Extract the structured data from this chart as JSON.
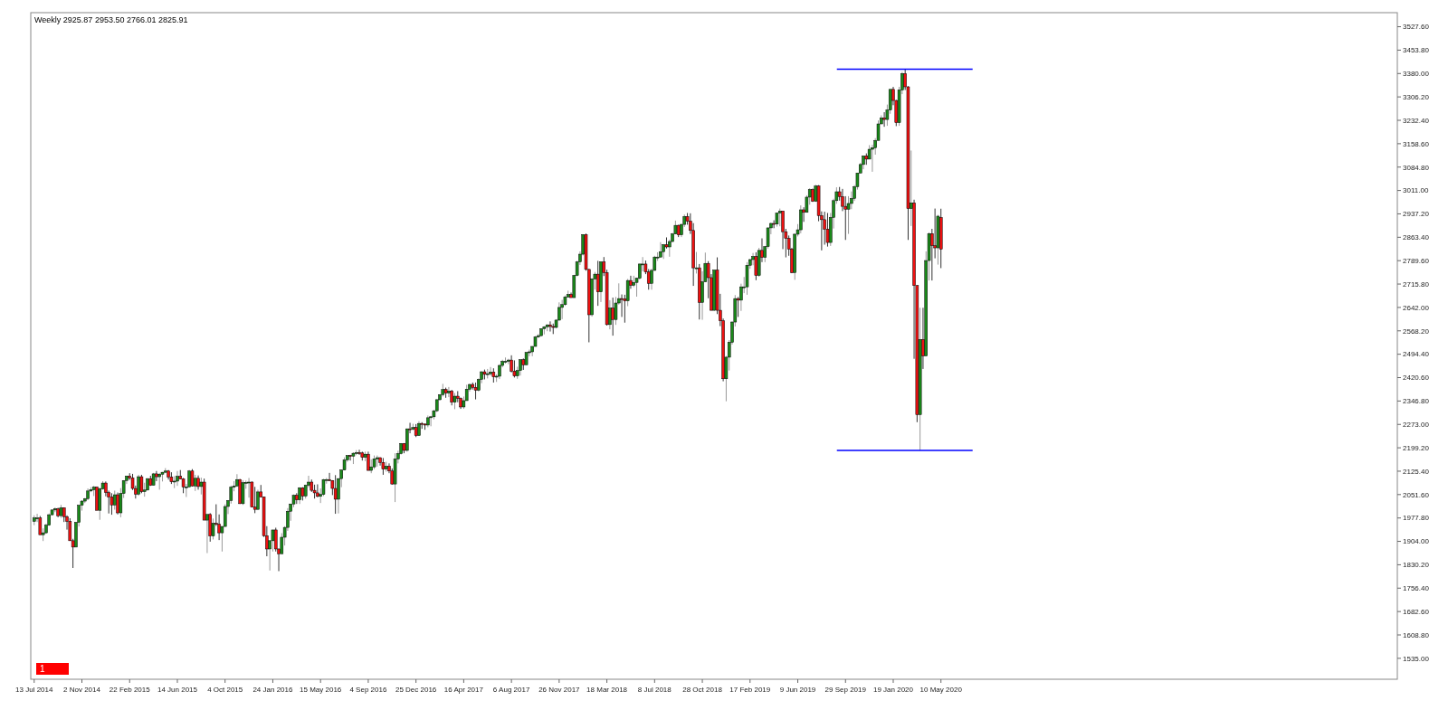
{
  "chart_data": {
    "type": "candlestick",
    "title": "Weekly  2925.87 2953.50 2766.01 2825.91",
    "annotations": [
      "1"
    ],
    "x": [
      "2014-07-13",
      "2014-07-20",
      "2014-07-27",
      "2014-08-03",
      "2014-08-10",
      "2014-08-17",
      "2014-08-24",
      "2014-08-31",
      "2014-09-07",
      "2014-09-14",
      "2014-09-21",
      "2014-09-28",
      "2014-10-05",
      "2014-10-12",
      "2014-10-19",
      "2014-10-26",
      "2014-11-02",
      "2014-11-09",
      "2014-11-16",
      "2014-11-23",
      "2014-11-30",
      "2014-12-07",
      "2014-12-14",
      "2014-12-21",
      "2014-12-28",
      "2015-01-04",
      "2015-01-11",
      "2015-01-18",
      "2015-01-25",
      "2015-02-01",
      "2015-02-08",
      "2015-02-15",
      "2015-02-22",
      "2015-03-01",
      "2015-03-08",
      "2015-03-15",
      "2015-03-22",
      "2015-03-29",
      "2015-04-05",
      "2015-04-12",
      "2015-04-19",
      "2015-04-26",
      "2015-05-03",
      "2015-05-10",
      "2015-05-17",
      "2015-05-24",
      "2015-05-31",
      "2015-06-07",
      "2015-06-14",
      "2015-06-21",
      "2015-06-28",
      "2015-07-05",
      "2015-07-12",
      "2015-07-19",
      "2015-07-26",
      "2015-08-02",
      "2015-08-09",
      "2015-08-16",
      "2015-08-23",
      "2015-08-30",
      "2015-09-06",
      "2015-09-13",
      "2015-09-20",
      "2015-09-27",
      "2015-10-04",
      "2015-10-11",
      "2015-10-18",
      "2015-10-25",
      "2015-11-01",
      "2015-11-08",
      "2015-11-15",
      "2015-11-22",
      "2015-11-29",
      "2015-12-06",
      "2015-12-13",
      "2015-12-20",
      "2015-12-27",
      "2016-01-03",
      "2016-01-10",
      "2016-01-17",
      "2016-01-24",
      "2016-01-31",
      "2016-02-07",
      "2016-02-14",
      "2016-02-21",
      "2016-02-28",
      "2016-03-06",
      "2016-03-13",
      "2016-03-20",
      "2016-03-27",
      "2016-04-03",
      "2016-04-10",
      "2016-04-17",
      "2016-04-24",
      "2016-05-01",
      "2016-05-08",
      "2016-05-15",
      "2016-05-22",
      "2016-05-29",
      "2016-06-05",
      "2016-06-12",
      "2016-06-19",
      "2016-06-26",
      "2016-07-03",
      "2016-07-10",
      "2016-07-17",
      "2016-07-24",
      "2016-07-31",
      "2016-08-07",
      "2016-08-14",
      "2016-08-21",
      "2016-08-28",
      "2016-09-04",
      "2016-09-11",
      "2016-09-18",
      "2016-09-25",
      "2016-10-02",
      "2016-10-09",
      "2016-10-16",
      "2016-10-23",
      "2016-10-30",
      "2016-11-06",
      "2016-11-13",
      "2016-11-20",
      "2016-11-27",
      "2016-12-04",
      "2016-12-11",
      "2016-12-18",
      "2016-12-25",
      "2017-01-01",
      "2017-01-08",
      "2017-01-15",
      "2017-01-22",
      "2017-01-29",
      "2017-02-05",
      "2017-02-12",
      "2017-02-19",
      "2017-02-26",
      "2017-03-05",
      "2017-03-12",
      "2017-03-19",
      "2017-03-26",
      "2017-04-02",
      "2017-04-09",
      "2017-04-16",
      "2017-04-23",
      "2017-04-30",
      "2017-05-07",
      "2017-05-14",
      "2017-05-21",
      "2017-05-28",
      "2017-06-04",
      "2017-06-11",
      "2017-06-18",
      "2017-06-25",
      "2017-07-02",
      "2017-07-09",
      "2017-07-16",
      "2017-07-23",
      "2017-07-30",
      "2017-08-06",
      "2017-08-13",
      "2017-08-20",
      "2017-08-27",
      "2017-09-03",
      "2017-09-10",
      "2017-09-17",
      "2017-09-24",
      "2017-10-01",
      "2017-10-08",
      "2017-10-15",
      "2017-10-22",
      "2017-10-29",
      "2017-11-05",
      "2017-11-12",
      "2017-11-19",
      "2017-11-26",
      "2017-12-03",
      "2017-12-10",
      "2017-12-17",
      "2017-12-24",
      "2017-12-31",
      "2018-01-07",
      "2018-01-14",
      "2018-01-21",
      "2018-01-28",
      "2018-02-04",
      "2018-02-11",
      "2018-02-18",
      "2018-02-25",
      "2018-03-04",
      "2018-03-11",
      "2018-03-18",
      "2018-03-25",
      "2018-04-01",
      "2018-04-08",
      "2018-04-15",
      "2018-04-22",
      "2018-04-29",
      "2018-05-06",
      "2018-05-13",
      "2018-05-20",
      "2018-05-27",
      "2018-06-03",
      "2018-06-10",
      "2018-06-17",
      "2018-06-24",
      "2018-07-01",
      "2018-07-08",
      "2018-07-15",
      "2018-07-22",
      "2018-07-29",
      "2018-08-05",
      "2018-08-12",
      "2018-08-19",
      "2018-08-26",
      "2018-09-02",
      "2018-09-09",
      "2018-09-16",
      "2018-09-23",
      "2018-09-30",
      "2018-10-07",
      "2018-10-14",
      "2018-10-21",
      "2018-10-28",
      "2018-11-04",
      "2018-11-11",
      "2018-11-18",
      "2018-11-25",
      "2018-12-02",
      "2018-12-09",
      "2018-12-16",
      "2018-12-23",
      "2018-12-30",
      "2019-01-06",
      "2019-01-13",
      "2019-01-20",
      "2019-01-27",
      "2019-02-03",
      "2019-02-10",
      "2019-02-17",
      "2019-02-24",
      "2019-03-03",
      "2019-03-10",
      "2019-03-17",
      "2019-03-24",
      "2019-03-31",
      "2019-04-07",
      "2019-04-14",
      "2019-04-21",
      "2019-04-28",
      "2019-05-05",
      "2019-05-12",
      "2019-05-19",
      "2019-05-26",
      "2019-06-02",
      "2019-06-09",
      "2019-06-16",
      "2019-06-23",
      "2019-06-30",
      "2019-07-07",
      "2019-07-14",
      "2019-07-21",
      "2019-07-28",
      "2019-08-04",
      "2019-08-11",
      "2019-08-18",
      "2019-08-25",
      "2019-09-01",
      "2019-09-08",
      "2019-09-15",
      "2019-09-22",
      "2019-09-29",
      "2019-10-06",
      "2019-10-13",
      "2019-10-20",
      "2019-10-27",
      "2019-11-03",
      "2019-11-10",
      "2019-11-17",
      "2019-11-24",
      "2019-12-01",
      "2019-12-08",
      "2019-12-15",
      "2019-12-22",
      "2019-12-29",
      "2020-01-05",
      "2020-01-12",
      "2020-01-19",
      "2020-01-26",
      "2020-02-02",
      "2020-02-09",
      "2020-02-16",
      "2020-02-23",
      "2020-03-01",
      "2020-03-08",
      "2020-03-15",
      "2020-03-22",
      "2020-03-29",
      "2020-04-05",
      "2020-04-12",
      "2020-04-19",
      "2020-04-26",
      "2020-05-03",
      "2020-05-10"
    ],
    "ohlc": [
      [
        1967,
        1986,
        1955,
        1978
      ],
      [
        1978,
        1991,
        1965,
        1978
      ],
      [
        1978,
        1984,
        1925,
        1925
      ],
      [
        1925,
        1945,
        1905,
        1931
      ],
      [
        1931,
        1960,
        1928,
        1955
      ],
      [
        1955,
        1992,
        1953,
        1988
      ],
      [
        1988,
        2005,
        1986,
        2003
      ],
      [
        2003,
        2011,
        1996,
        2007
      ],
      [
        2007,
        2010,
        1980,
        1985
      ],
      [
        1985,
        2019,
        1978,
        2010
      ],
      [
        2010,
        2011,
        1965,
        1982
      ],
      [
        1982,
        1986,
        1941,
        1967
      ],
      [
        1967,
        1977,
        1906,
        1906
      ],
      [
        1906,
        1912,
        1820,
        1886
      ],
      [
        1886,
        1965,
        1886,
        1964
      ],
      [
        1964,
        2019,
        1951,
        2018
      ],
      [
        2018,
        2034,
        2001,
        2031
      ],
      [
        2031,
        2041,
        2025,
        2039
      ],
      [
        2039,
        2071,
        2034,
        2063
      ],
      [
        2063,
        2075,
        2059,
        2067
      ],
      [
        2067,
        2079,
        2047,
        2075
      ],
      [
        2075,
        2077,
        2002,
        2002
      ],
      [
        2002,
        2074,
        1972,
        2070
      ],
      [
        2070,
        2094,
        2067,
        2088
      ],
      [
        2088,
        2093,
        2046,
        2058
      ],
      [
        2058,
        2064,
        1992,
        2044
      ],
      [
        2044,
        2056,
        1988,
        2019
      ],
      [
        2019,
        2064,
        2004,
        2051
      ],
      [
        2051,
        2058,
        1989,
        1994
      ],
      [
        1994,
        2072,
        1980,
        2055
      ],
      [
        2055,
        2097,
        2041,
        2096
      ],
      [
        2096,
        2111,
        2085,
        2110
      ],
      [
        2110,
        2119,
        2098,
        2104
      ],
      [
        2104,
        2117,
        2066,
        2071
      ],
      [
        2071,
        2080,
        2039,
        2053
      ],
      [
        2053,
        2114,
        2048,
        2108
      ],
      [
        2108,
        2114,
        2056,
        2061
      ],
      [
        2061,
        2089,
        2045,
        2066
      ],
      [
        2066,
        2103,
        2064,
        2102
      ],
      [
        2102,
        2111,
        2079,
        2081
      ],
      [
        2081,
        2120,
        2081,
        2117
      ],
      [
        2117,
        2126,
        2094,
        2108
      ],
      [
        2108,
        2120,
        2067,
        2116
      ],
      [
        2116,
        2123,
        2093,
        2122
      ],
      [
        2122,
        2135,
        2119,
        2126
      ],
      [
        2126,
        2129,
        2099,
        2107
      ],
      [
        2107,
        2122,
        2085,
        2092
      ],
      [
        2092,
        2110,
        2072,
        2094
      ],
      [
        2094,
        2126,
        2079,
        2109
      ],
      [
        2109,
        2129,
        2100,
        2101
      ],
      [
        2101,
        2104,
        2056,
        2076
      ],
      [
        2076,
        2085,
        2044,
        2076
      ],
      [
        2076,
        2129,
        2076,
        2126
      ],
      [
        2126,
        2132,
        2077,
        2079
      ],
      [
        2079,
        2114,
        2063,
        2103
      ],
      [
        2103,
        2112,
        2067,
        2077
      ],
      [
        2077,
        2105,
        2052,
        2091
      ],
      [
        2091,
        2102,
        1971,
        1971
      ],
      [
        1971,
        1989,
        1867,
        1989
      ],
      [
        1989,
        1993,
        1903,
        1921
      ],
      [
        1921,
        1976,
        1910,
        1961
      ],
      [
        1961,
        2021,
        1953,
        1958
      ],
      [
        1958,
        1989,
        1908,
        1931
      ],
      [
        1931,
        1952,
        1872,
        1951
      ],
      [
        1951,
        2021,
        1951,
        2014
      ],
      [
        2014,
        2034,
        1990,
        2033
      ],
      [
        2033,
        2080,
        2023,
        2075
      ],
      [
        2075,
        2094,
        2062,
        2079
      ],
      [
        2079,
        2116,
        2076,
        2099
      ],
      [
        2099,
        2101,
        2022,
        2023
      ],
      [
        2023,
        2097,
        2019,
        2089
      ],
      [
        2089,
        2096,
        2070,
        2090
      ],
      [
        2090,
        2104,
        2042,
        2091
      ],
      [
        2091,
        2093,
        2012,
        2012
      ],
      [
        2012,
        2076,
        1993,
        2005
      ],
      [
        2005,
        2067,
        2003,
        2060
      ],
      [
        2060,
        2082,
        2043,
        2044
      ],
      [
        2044,
        2045,
        1918,
        1922
      ],
      [
        1922,
        1952,
        1857,
        1880
      ],
      [
        1880,
        1908,
        1812,
        1906
      ],
      [
        1906,
        1940,
        1872,
        1940
      ],
      [
        1940,
        1947,
        1872,
        1880
      ],
      [
        1880,
        1881,
        1810,
        1865
      ],
      [
        1865,
        1930,
        1865,
        1917
      ],
      [
        1917,
        1952,
        1891,
        1948
      ],
      [
        1948,
        2009,
        1937,
        1999
      ],
      [
        1999,
        2022,
        1969,
        2022
      ],
      [
        2022,
        2052,
        2012,
        2049
      ],
      [
        2049,
        2056,
        2022,
        2035
      ],
      [
        2035,
        2075,
        2022,
        2073
      ],
      [
        2073,
        2075,
        2033,
        2047
      ],
      [
        2047,
        2083,
        2039,
        2081
      ],
      [
        2081,
        2111,
        2075,
        2091
      ],
      [
        2091,
        2099,
        2060,
        2065
      ],
      [
        2065,
        2083,
        2039,
        2057
      ],
      [
        2057,
        2084,
        2043,
        2046
      ],
      [
        2046,
        2071,
        2025,
        2052
      ],
      [
        2052,
        2101,
        2047,
        2099
      ],
      [
        2099,
        2104,
        2086,
        2099
      ],
      [
        2099,
        2120,
        2094,
        2096
      ],
      [
        2096,
        2097,
        2050,
        2071
      ],
      [
        2071,
        2113,
        1991,
        2037
      ],
      [
        2037,
        2103,
        1992,
        2102
      ],
      [
        2102,
        2131,
        2075,
        2129
      ],
      [
        2129,
        2169,
        2128,
        2161
      ],
      [
        2161,
        2175,
        2155,
        2175
      ],
      [
        2175,
        2177,
        2159,
        2173
      ],
      [
        2173,
        2185,
        2148,
        2182
      ],
      [
        2182,
        2192,
        2176,
        2184
      ],
      [
        2184,
        2193,
        2177,
        2183
      ],
      [
        2183,
        2187,
        2159,
        2169
      ],
      [
        2169,
        2187,
        2157,
        2179
      ],
      [
        2179,
        2187,
        2127,
        2128
      ],
      [
        2128,
        2163,
        2119,
        2139
      ],
      [
        2139,
        2175,
        2132,
        2164
      ],
      [
        2164,
        2175,
        2140,
        2168
      ],
      [
        2168,
        2169,
        2143,
        2153
      ],
      [
        2153,
        2167,
        2114,
        2132
      ],
      [
        2132,
        2155,
        2124,
        2141
      ],
      [
        2141,
        2150,
        2119,
        2126
      ],
      [
        2126,
        2134,
        2083,
        2085
      ],
      [
        2085,
        2182,
        2028,
        2164
      ],
      [
        2164,
        2190,
        2150,
        2181
      ],
      [
        2181,
        2214,
        2178,
        2213
      ],
      [
        2213,
        2214,
        2182,
        2191
      ],
      [
        2191,
        2260,
        2187,
        2259
      ],
      [
        2259,
        2278,
        2245,
        2258
      ],
      [
        2258,
        2275,
        2254,
        2263
      ],
      [
        2263,
        2274,
        2233,
        2238
      ],
      [
        2238,
        2283,
        2237,
        2276
      ],
      [
        2276,
        2280,
        2259,
        2274
      ],
      [
        2274,
        2276,
        2256,
        2271
      ],
      [
        2271,
        2301,
        2264,
        2294
      ],
      [
        2294,
        2300,
        2267,
        2297
      ],
      [
        2297,
        2319,
        2289,
        2316
      ],
      [
        2316,
        2352,
        2312,
        2351
      ],
      [
        2351,
        2368,
        2348,
        2367
      ],
      [
        2367,
        2401,
        2361,
        2383
      ],
      [
        2383,
        2389,
        2357,
        2372
      ],
      [
        2372,
        2391,
        2359,
        2378
      ],
      [
        2378,
        2382,
        2333,
        2343
      ],
      [
        2343,
        2372,
        2321,
        2362
      ],
      [
        2362,
        2378,
        2343,
        2355
      ],
      [
        2355,
        2358,
        2322,
        2328
      ],
      [
        2328,
        2361,
        2322,
        2348
      ],
      [
        2348,
        2398,
        2348,
        2384
      ],
      [
        2384,
        2402,
        2377,
        2399
      ],
      [
        2399,
        2405,
        2383,
        2390
      ],
      [
        2390,
        2405,
        2352,
        2381
      ],
      [
        2381,
        2418,
        2377,
        2415
      ],
      [
        2415,
        2441,
        2403,
        2439
      ],
      [
        2439,
        2446,
        2415,
        2431
      ],
      [
        2431,
        2448,
        2418,
        2433
      ],
      [
        2433,
        2454,
        2427,
        2438
      ],
      [
        2438,
        2450,
        2405,
        2423
      ],
      [
        2423,
        2431,
        2407,
        2425
      ],
      [
        2425,
        2463,
        2416,
        2459
      ],
      [
        2459,
        2477,
        2453,
        2472
      ],
      [
        2472,
        2484,
        2465,
        2472
      ],
      [
        2472,
        2480,
        2463,
        2476
      ],
      [
        2476,
        2491,
        2437,
        2441
      ],
      [
        2441,
        2475,
        2421,
        2426
      ],
      [
        2426,
        2455,
        2417,
        2443
      ],
      [
        2443,
        2478,
        2427,
        2477
      ],
      [
        2477,
        2481,
        2445,
        2461
      ],
      [
        2461,
        2501,
        2461,
        2500
      ],
      [
        2500,
        2509,
        2488,
        2502
      ],
      [
        2502,
        2520,
        2488,
        2519
      ],
      [
        2519,
        2552,
        2519,
        2549
      ],
      [
        2549,
        2558,
        2546,
        2553
      ],
      [
        2553,
        2576,
        2551,
        2575
      ],
      [
        2575,
        2583,
        2557,
        2581
      ],
      [
        2581,
        2589,
        2567,
        2587
      ],
      [
        2587,
        2598,
        2566,
        2582
      ],
      [
        2582,
        2591,
        2558,
        2579
      ],
      [
        2579,
        2605,
        2576,
        2602
      ],
      [
        2602,
        2658,
        2600,
        2642
      ],
      [
        2642,
        2666,
        2605,
        2651
      ],
      [
        2651,
        2680,
        2647,
        2675
      ],
      [
        2675,
        2695,
        2673,
        2683
      ],
      [
        2683,
        2689,
        2673,
        2673
      ],
      [
        2673,
        2745,
        2673,
        2743
      ],
      [
        2743,
        2789,
        2740,
        2786
      ],
      [
        2786,
        2819,
        2776,
        2810
      ],
      [
        2810,
        2873,
        2806,
        2872
      ],
      [
        2872,
        2875,
        2758,
        2762
      ],
      [
        2762,
        2763,
        2532,
        2619
      ],
      [
        2619,
        2734,
        2613,
        2732
      ],
      [
        2732,
        2754,
        2698,
        2747
      ],
      [
        2747,
        2789,
        2647,
        2691
      ],
      [
        2691,
        2787,
        2659,
        2786
      ],
      [
        2786,
        2801,
        2741,
        2752
      ],
      [
        2752,
        2761,
        2585,
        2588
      ],
      [
        2588,
        2665,
        2573,
        2640
      ],
      [
        2640,
        2673,
        2553,
        2604
      ],
      [
        2604,
        2675,
        2587,
        2656
      ],
      [
        2656,
        2718,
        2651,
        2670
      ],
      [
        2670,
        2683,
        2612,
        2669
      ],
      [
        2669,
        2682,
        2594,
        2663
      ],
      [
        2663,
        2732,
        2646,
        2727
      ],
      [
        2727,
        2742,
        2701,
        2712
      ],
      [
        2712,
        2742,
        2706,
        2721
      ],
      [
        2721,
        2736,
        2676,
        2734
      ],
      [
        2734,
        2780,
        2730,
        2779
      ],
      [
        2779,
        2801,
        2756,
        2779
      ],
      [
        2779,
        2790,
        2747,
        2754
      ],
      [
        2754,
        2763,
        2698,
        2718
      ],
      [
        2718,
        2764,
        2698,
        2759
      ],
      [
        2759,
        2805,
        2757,
        2801
      ],
      [
        2801,
        2816,
        2789,
        2801
      ],
      [
        2801,
        2848,
        2799,
        2818
      ],
      [
        2818,
        2842,
        2795,
        2840
      ],
      [
        2840,
        2863,
        2828,
        2833
      ],
      [
        2833,
        2856,
        2802,
        2850
      ],
      [
        2850,
        2877,
        2848,
        2874
      ],
      [
        2874,
        2916,
        2873,
        2901
      ],
      [
        2901,
        2903,
        2864,
        2871
      ],
      [
        2871,
        2906,
        2864,
        2904
      ],
      [
        2904,
        2935,
        2896,
        2929
      ],
      [
        2929,
        2940,
        2903,
        2914
      ],
      [
        2914,
        2939,
        2874,
        2885
      ],
      [
        2885,
        2908,
        2710,
        2767
      ],
      [
        2767,
        2817,
        2749,
        2767
      ],
      [
        2767,
        2779,
        2604,
        2658
      ],
      [
        2658,
        2756,
        2603,
        2723
      ],
      [
        2723,
        2815,
        2722,
        2781
      ],
      [
        2781,
        2788,
        2671,
        2736
      ],
      [
        2736,
        2747,
        2632,
        2633
      ],
      [
        2633,
        2760,
        2631,
        2760
      ],
      [
        2760,
        2800,
        2621,
        2633
      ],
      [
        2633,
        2685,
        2583,
        2600
      ],
      [
        2600,
        2607,
        2409,
        2417
      ],
      [
        2417,
        2489,
        2346,
        2485
      ],
      [
        2485,
        2539,
        2443,
        2532
      ],
      [
        2532,
        2598,
        2525,
        2596
      ],
      [
        2596,
        2681,
        2582,
        2670
      ],
      [
        2670,
        2675,
        2612,
        2665
      ],
      [
        2665,
        2717,
        2631,
        2707
      ],
      [
        2707,
        2738,
        2687,
        2707
      ],
      [
        2707,
        2785,
        2682,
        2775
      ],
      [
        2775,
        2795,
        2764,
        2793
      ],
      [
        2793,
        2814,
        2775,
        2803
      ],
      [
        2803,
        2816,
        2728,
        2743
      ],
      [
        2743,
        2830,
        2739,
        2822
      ],
      [
        2822,
        2860,
        2785,
        2800
      ],
      [
        2800,
        2836,
        2785,
        2834
      ],
      [
        2834,
        2894,
        2828,
        2893
      ],
      [
        2893,
        2910,
        2873,
        2907
      ],
      [
        2907,
        2917,
        2892,
        2905
      ],
      [
        2905,
        2940,
        2897,
        2940
      ],
      [
        2940,
        2954,
        2898,
        2946
      ],
      [
        2946,
        2947,
        2826,
        2881
      ],
      [
        2881,
        2890,
        2800,
        2860
      ],
      [
        2860,
        2869,
        2805,
        2826
      ],
      [
        2826,
        2830,
        2750,
        2752
      ],
      [
        2752,
        2876,
        2729,
        2873
      ],
      [
        2873,
        2905,
        2866,
        2887
      ],
      [
        2887,
        2964,
        2876,
        2950
      ],
      [
        2950,
        2958,
        2912,
        2942
      ],
      [
        2942,
        2996,
        2942,
        2990
      ],
      [
        2990,
        3018,
        2966,
        3014
      ],
      [
        3014,
        3017,
        2975,
        2977
      ],
      [
        2977,
        3029,
        2975,
        3025
      ],
      [
        3025,
        3028,
        2914,
        2932
      ],
      [
        2932,
        2945,
        2822,
        2919
      ],
      [
        2919,
        2944,
        2840,
        2889
      ],
      [
        2889,
        2940,
        2834,
        2847
      ],
      [
        2847,
        2940,
        2836,
        2926
      ],
      [
        2926,
        2985,
        2891,
        2979
      ],
      [
        2979,
        3021,
        2969,
        3007
      ],
      [
        3007,
        3022,
        2979,
        2992
      ],
      [
        2992,
        3016,
        2946,
        2961
      ],
      [
        2961,
        2993,
        2855,
        2952
      ],
      [
        2952,
        2993,
        2874,
        2970
      ],
      [
        2970,
        3008,
        2952,
        2986
      ],
      [
        2986,
        3028,
        2978,
        3023
      ],
      [
        3023,
        3066,
        3014,
        3066
      ],
      [
        3066,
        3098,
        3066,
        3093
      ],
      [
        3093,
        3121,
        3078,
        3120
      ],
      [
        3120,
        3128,
        3092,
        3110
      ],
      [
        3110,
        3154,
        3110,
        3141
      ],
      [
        3141,
        3155,
        3070,
        3146
      ],
      [
        3146,
        3176,
        3124,
        3169
      ],
      [
        3169,
        3232,
        3169,
        3221
      ],
      [
        3221,
        3248,
        3221,
        3240
      ],
      [
        3240,
        3258,
        3212,
        3235
      ],
      [
        3235,
        3282,
        3215,
        3265
      ],
      [
        3265,
        3330,
        3253,
        3330
      ],
      [
        3330,
        3338,
        3280,
        3295
      ],
      [
        3295,
        3297,
        3214,
        3225
      ],
      [
        3225,
        3338,
        3215,
        3328
      ],
      [
        3328,
        3385,
        3315,
        3380
      ],
      [
        3380,
        3393.5,
        3328,
        3338
      ],
      [
        3338,
        3340,
        2855,
        2954
      ],
      [
        2954,
        3137,
        2899,
        2972
      ],
      [
        2972,
        2982,
        2480,
        2711
      ],
      [
        2711,
        2712,
        2280,
        2304
      ],
      [
        2304,
        2641,
        2191,
        2541
      ],
      [
        2541,
        2641,
        2448,
        2489
      ],
      [
        2489,
        2819,
        2489,
        2790
      ],
      [
        2790,
        2879,
        2727,
        2875
      ],
      [
        2875,
        2890,
        2727,
        2837
      ],
      [
        2837,
        2954,
        2797,
        2830
      ],
      [
        2830,
        2934,
        2777,
        2930
      ],
      [
        2925.87,
        2953.5,
        2766.01,
        2825.91
      ]
    ],
    "xlim": [
      "2014-07-05",
      "2023-04-16"
    ],
    "xticks": [
      {
        "value": "2014-07-13",
        "label": "13 Jul 2014"
      },
      {
        "value": "2014-11-02",
        "label": "2 Nov 2014"
      },
      {
        "value": "2015-02-22",
        "label": "22 Feb 2015"
      },
      {
        "value": "2015-06-14",
        "label": "14 Jun 2015"
      },
      {
        "value": "2015-10-04",
        "label": "4 Oct 2015"
      },
      {
        "value": "2016-01-24",
        "label": "24 Jan 2016"
      },
      {
        "value": "2016-05-15",
        "label": "15 May 2016"
      },
      {
        "value": "2016-09-04",
        "label": "4 Sep 2016"
      },
      {
        "value": "2016-12-25",
        "label": "25 Dec 2016"
      },
      {
        "value": "2017-04-16",
        "label": "16 Apr 2017"
      },
      {
        "value": "2017-08-06",
        "label": "6 Aug 2017"
      },
      {
        "value": "2017-11-26",
        "label": "26 Nov 2017"
      },
      {
        "value": "2018-03-18",
        "label": "18 Mar 2018"
      },
      {
        "value": "2018-07-08",
        "label": "8 Jul 2018"
      },
      {
        "value": "2018-10-28",
        "label": "28 Oct 2018"
      },
      {
        "value": "2019-02-17",
        "label": "17 Feb 2019"
      },
      {
        "value": "2019-06-09",
        "label": "9 Jun 2019"
      },
      {
        "value": "2019-09-29",
        "label": "29 Sep 2019"
      },
      {
        "value": "2020-01-19",
        "label": "19 Jan 2020"
      },
      {
        "value": "2020-05-10",
        "label": "10 May 2020"
      }
    ],
    "ylim": [
      1469,
      3572
    ],
    "yticks": [
      {
        "value": 1535,
        "label": "1535.00"
      },
      {
        "value": 1608.8,
        "label": "1608.80"
      },
      {
        "value": 1682.6,
        "label": "1682.60"
      },
      {
        "value": 1756.4,
        "label": "1756.40"
      },
      {
        "value": 1830.2,
        "label": "1830.20"
      },
      {
        "value": 1904,
        "label": "1904.00"
      },
      {
        "value": 1977.8,
        "label": "1977.80"
      },
      {
        "value": 2051.6,
        "label": "2051.60"
      },
      {
        "value": 2125.4,
        "label": "2125.40"
      },
      {
        "value": 2199.2,
        "label": "2199.20"
      },
      {
        "value": 2273,
        "label": "2273.00"
      },
      {
        "value": 2346.8,
        "label": "2346.80"
      },
      {
        "value": 2420.6,
        "label": "2420.60"
      },
      {
        "value": 2494.4,
        "label": "2494.40"
      },
      {
        "value": 2568.2,
        "label": "2568.20"
      },
      {
        "value": 2642,
        "label": "2642.00"
      },
      {
        "value": 2715.8,
        "label": "2715.80"
      },
      {
        "value": 2789.6,
        "label": "2789.60"
      },
      {
        "value": 2863.4,
        "label": "2863.40"
      },
      {
        "value": 2937.2,
        "label": "2937.20"
      },
      {
        "value": 3011,
        "label": "3011.00"
      },
      {
        "value": 3084.8,
        "label": "3084.80"
      },
      {
        "value": 3158.6,
        "label": "3158.60"
      },
      {
        "value": 3232.4,
        "label": "3232.40"
      },
      {
        "value": 3306.2,
        "label": "3306.20"
      },
      {
        "value": 3380,
        "label": "3380.00"
      },
      {
        "value": 3453.8,
        "label": "3453.80"
      },
      {
        "value": 3527.6,
        "label": "3527.60"
      }
    ],
    "ref_lines": [
      {
        "axis": "y",
        "value": 3393.5,
        "color": "#0000ff"
      },
      {
        "axis": "y",
        "value": 2191,
        "color": "#0000ff"
      }
    ]
  }
}
